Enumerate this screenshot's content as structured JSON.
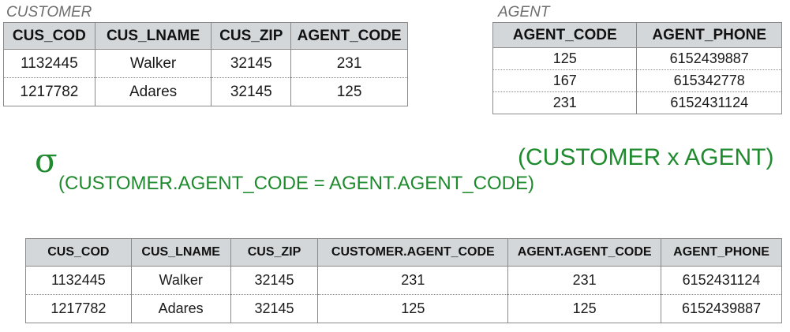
{
  "customer": {
    "title": "CUSTOMER",
    "headers": [
      "CUS_COD",
      "CUS_LNAME",
      "CUS_ZIP",
      "AGENT_CODE"
    ],
    "rows": [
      [
        "1132445",
        "Walker",
        "32145",
        "231"
      ],
      [
        "1217782",
        "Adares",
        "32145",
        "125"
      ]
    ]
  },
  "agent": {
    "title": "AGENT",
    "headers": [
      "AGENT_CODE",
      "AGENT_PHONE"
    ],
    "rows": [
      [
        "125",
        "6152439887"
      ],
      [
        "167",
        "615342778"
      ],
      [
        "231",
        "6152431124"
      ]
    ]
  },
  "expression": {
    "symbol": "σ",
    "condition": "(CUSTOMER.AGENT_CODE = AGENT.AGENT_CODE)",
    "product": "(CUSTOMER x AGENT)",
    "color": "#1f8a2e"
  },
  "result": {
    "headers": [
      "CUS_COD",
      "CUS_LNAME",
      "CUS_ZIP",
      "CUSTOMER.AGENT_CODE",
      "AGENT.AGENT_CODE",
      "AGENT_PHONE"
    ],
    "rows": [
      [
        "1132445",
        "Walker",
        "32145",
        "231",
        "231",
        "6152431124"
      ],
      [
        "1217782",
        "Adares",
        "32145",
        "125",
        "125",
        "6152439887"
      ]
    ]
  }
}
